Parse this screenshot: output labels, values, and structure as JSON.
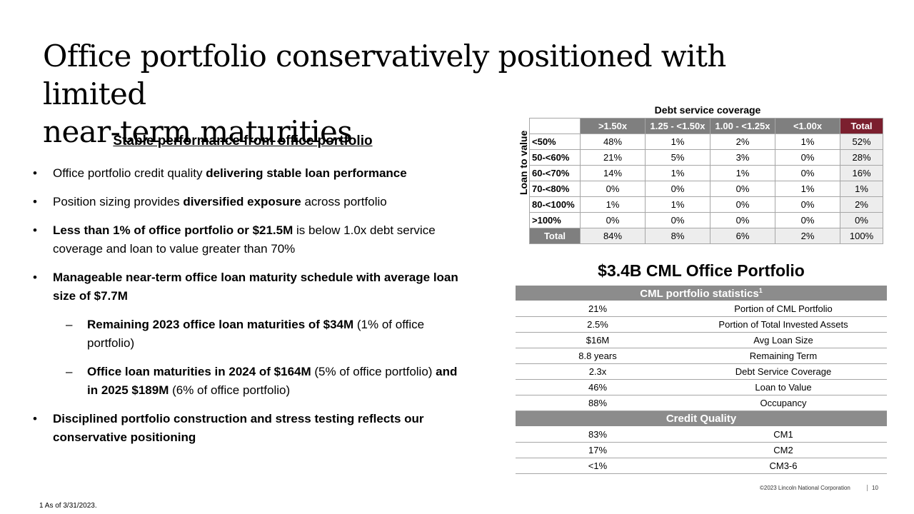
{
  "title": {
    "line1": "Office portfolio conservatively positioned with limited",
    "line2": "near-term maturities"
  },
  "left": {
    "subhead": "Stable performance from office portfolio",
    "b1": {
      "normal": "Office portfolio credit quality ",
      "bold": "delivering stable loan performance"
    },
    "b2": {
      "normal1": "Position sizing provides ",
      "bold": "diversified exposure",
      "normal2": " across portfolio"
    },
    "b3": {
      "bold": "Less than 1% of office portfolio or $21.5M",
      "normal": " is below 1.0x debt service coverage and loan to value greater than 70%"
    },
    "b4": {
      "bold": "Manageable near-term office loan maturity schedule with average loan size of $7.7M"
    },
    "s1": {
      "bold": "Remaining 2023 office loan maturities of $34M",
      "normal": " (1% of office portfolio)"
    },
    "s2": {
      "bold1": "Office loan maturities in 2024 of $164M",
      "normal1": " (5% of office portfolio) ",
      "bold2": "and in 2025 $189M",
      "normal2": " (6% of office portfolio)"
    },
    "b5": {
      "bold": "Disciplined portfolio construction and stress testing reflects our conservative positioning"
    }
  },
  "dsc": {
    "title": "Debt service coverage",
    "ltv_label": "Loan to value",
    "columns": [
      ">1.50x",
      "1.25 - <1.50x",
      "1.00 - <1.25x",
      "<1.00x",
      "Total"
    ],
    "rows": [
      {
        "label": "<50%",
        "values": [
          "48%",
          "1%",
          "2%",
          "1%",
          "52%"
        ]
      },
      {
        "label": "50-<60%",
        "values": [
          "21%",
          "5%",
          "3%",
          "0%",
          "28%"
        ]
      },
      {
        "label": "60-<70%",
        "values": [
          "14%",
          "1%",
          "1%",
          "0%",
          "16%"
        ]
      },
      {
        "label": "70-<80%",
        "values": [
          "0%",
          "0%",
          "0%",
          "1%",
          "1%"
        ]
      },
      {
        "label": "80-<100%",
        "values": [
          "1%",
          "1%",
          "0%",
          "0%",
          "2%"
        ]
      },
      {
        "label": ">100%",
        "values": [
          "0%",
          "0%",
          "0%",
          "0%",
          "0%"
        ]
      }
    ],
    "total": {
      "label": "Total",
      "values": [
        "84%",
        "8%",
        "6%",
        "2%",
        "100%"
      ]
    }
  },
  "cml": {
    "title": "$3.4B CML Office Portfolio",
    "stats_header": "CML portfolio statistics",
    "stats_sup": "1",
    "stats": [
      {
        "value": "21%",
        "label": "Portion of CML Portfolio"
      },
      {
        "value": "2.5%",
        "label": "Portion of Total Invested Assets"
      },
      {
        "value": "$16M",
        "label": "Avg Loan Size"
      },
      {
        "value": "8.8 years",
        "label": "Remaining Term"
      },
      {
        "value": "2.3x",
        "label": "Debt Service Coverage"
      },
      {
        "value": "46%",
        "label": "Loan to Value"
      },
      {
        "value": "88%",
        "label": "Occupancy"
      }
    ],
    "quality_header": "Credit Quality",
    "quality": [
      {
        "value": "83%",
        "label": "CM1"
      },
      {
        "value": "17%",
        "label": "CM2"
      },
      {
        "value": "<1%",
        "label": "CM3-6"
      }
    ]
  },
  "footer": {
    "footnote": "1 As of 3/31/2023.",
    "copyright": "©2023 Lincoln National Corporation",
    "page": "10"
  },
  "colors": {
    "header_gray": "#7f7f7f",
    "total_maroon": "#7b1f2e",
    "shade": "#ededed"
  }
}
